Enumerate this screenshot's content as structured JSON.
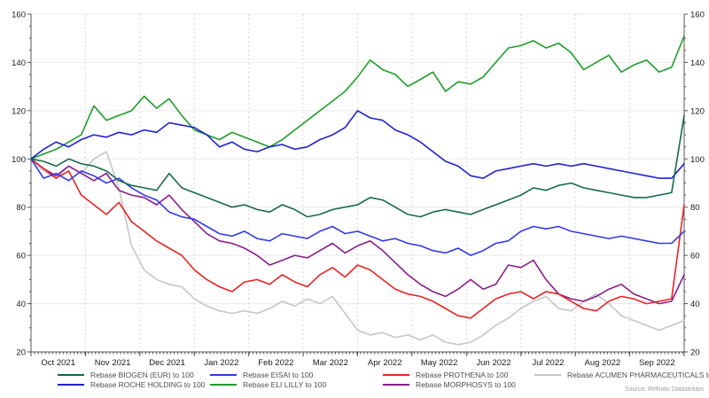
{
  "source_note": "Source: Refinitiv Datastream",
  "legend": {
    "column_lefts": [
      65,
      237,
      432,
      603
    ],
    "columns": [
      [
        0,
        1
      ],
      [
        2,
        3
      ],
      [
        4,
        5
      ],
      [
        6
      ]
    ]
  },
  "chart_data": {
    "type": "line",
    "title": "",
    "xlabel": "",
    "ylabel": "",
    "grid": "horizontal solid, vertical dashed at month boundaries",
    "legend_position": "bottom",
    "y_axis": {
      "min": 20,
      "max": 160,
      "major_step": 20,
      "minor_step": 5,
      "tick_labels": [
        "20",
        "40",
        "60",
        "80",
        "100",
        "120",
        "140",
        "160"
      ],
      "mirrored_right": true
    },
    "x_axis": {
      "tick_labels": [
        "Oct 2021",
        "Nov 2021",
        "Dec 2021",
        "Jan 2022",
        "Feb 2022",
        "Mar 2022",
        "Apr 2022",
        "May 2022",
        "Jun 2022",
        "Jul 2022",
        "Aug 2022",
        "Sep 2022"
      ]
    },
    "sampling": "weekly, Oct 2021 through end Sep 2022",
    "series": [
      {
        "name": "Rebase BIOGEN (EUR) to 100",
        "color": "#17694a",
        "values": [
          100,
          99,
          97,
          100,
          98,
          97,
          95,
          91,
          89,
          88,
          87,
          94,
          88,
          86,
          84,
          82,
          80,
          81,
          79,
          78,
          81,
          79,
          76,
          77,
          79,
          80,
          81,
          84,
          83,
          80,
          77,
          76,
          78,
          79,
          78,
          77,
          79,
          81,
          83,
          85,
          88,
          87,
          89,
          90,
          88,
          87,
          86,
          85,
          84,
          84,
          85,
          86,
          118
        ]
      },
      {
        "name": "Rebase ROCHE HOLDING to 100",
        "color": "#2021d0",
        "values": [
          100,
          104,
          107,
          105,
          108,
          110,
          109,
          111,
          110,
          112,
          111,
          115,
          114,
          113,
          110,
          105,
          107,
          104,
          103,
          105,
          106,
          104,
          105,
          108,
          110,
          113,
          120,
          117,
          116,
          112,
          110,
          107,
          103,
          99,
          97,
          93,
          92,
          95,
          96,
          97,
          98,
          97,
          98,
          97,
          98,
          97,
          96,
          95,
          94,
          93,
          92,
          92,
          98
        ]
      },
      {
        "name": "Rebase EISAI to 100",
        "color": "#3339e8",
        "values": [
          100,
          92,
          94,
          91,
          95,
          93,
          90,
          92,
          88,
          85,
          83,
          78,
          76,
          75,
          72,
          69,
          68,
          70,
          67,
          66,
          69,
          68,
          67,
          70,
          72,
          69,
          70,
          68,
          66,
          67,
          65,
          64,
          62,
          61,
          63,
          60,
          62,
          65,
          66,
          70,
          72,
          71,
          72,
          70,
          69,
          68,
          67,
          68,
          67,
          66,
          65,
          65,
          70
        ]
      },
      {
        "name": "Rebase ELI LILLY to 100",
        "color": "#1c9e28",
        "values": [
          100,
          102,
          104,
          107,
          110,
          122,
          116,
          118,
          120,
          126,
          121,
          125,
          118,
          112,
          110,
          108,
          111,
          109,
          107,
          105,
          108,
          112,
          116,
          120,
          124,
          128,
          134,
          141,
          137,
          135,
          130,
          133,
          136,
          128,
          132,
          131,
          134,
          140,
          146,
          147,
          149,
          146,
          148,
          144,
          137,
          140,
          143,
          136,
          139,
          141,
          136,
          138,
          151
        ]
      },
      {
        "name": "Rebase PROTHENA to 100",
        "color": "#e62320",
        "values": [
          100,
          96,
          92,
          95,
          85,
          81,
          77,
          82,
          74,
          70,
          66,
          63,
          60,
          54,
          50,
          47,
          45,
          49,
          50,
          48,
          52,
          49,
          47,
          52,
          55,
          51,
          56,
          54,
          50,
          46,
          44,
          43,
          41,
          38,
          35,
          34,
          38,
          42,
          44,
          45,
          42,
          45,
          44,
          41,
          38,
          37,
          41,
          43,
          42,
          40,
          41,
          42,
          81
        ]
      },
      {
        "name": "Rebase MORPHOSYS to 100",
        "color": "#8a1c8a",
        "values": [
          100,
          96,
          93,
          97,
          94,
          91,
          94,
          87,
          85,
          84,
          81,
          85,
          79,
          74,
          69,
          66,
          65,
          63,
          60,
          56,
          58,
          60,
          59,
          62,
          65,
          61,
          64,
          66,
          62,
          57,
          52,
          48,
          45,
          43,
          46,
          50,
          46,
          48,
          56,
          55,
          58,
          50,
          44,
          42,
          41,
          43,
          46,
          48,
          44,
          42,
          40,
          41,
          52
        ]
      },
      {
        "name": "Rebase ACUMEN PHARMACEUTICALS to…",
        "color": "#c6c6c6",
        "values": [
          100,
          95,
          92,
          97,
          94,
          100,
          103,
          88,
          64,
          54,
          50,
          48,
          47,
          42,
          39,
          37,
          36,
          37,
          36,
          38,
          41,
          39,
          42,
          40,
          43,
          36,
          29,
          27,
          28,
          26,
          27,
          25,
          27,
          24,
          23,
          24,
          27,
          31,
          34,
          38,
          41,
          43,
          38,
          37,
          41,
          44,
          40,
          35,
          33,
          31,
          29,
          31,
          33
        ]
      }
    ],
    "source": "Source: Refinitiv Datastream"
  }
}
